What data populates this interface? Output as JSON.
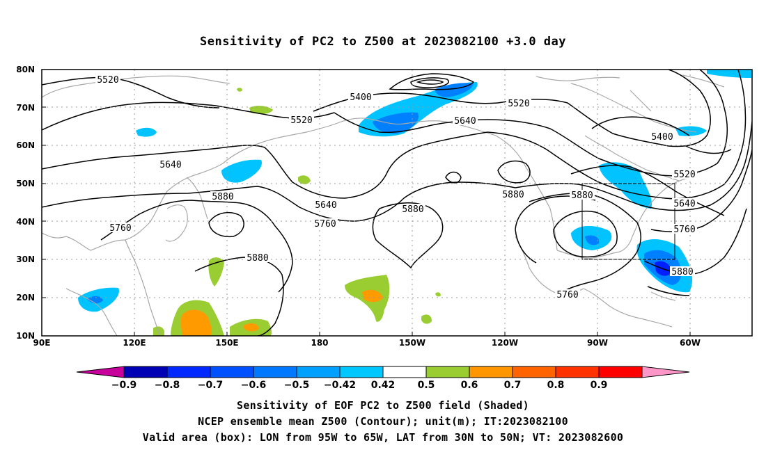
{
  "title": "Sensitivity of PC2 to Z500 at 2023082100 +3.0 day",
  "map": {
    "lat_labels": [
      "80N",
      "70N",
      "60N",
      "50N",
      "40N",
      "30N",
      "20N",
      "10N"
    ],
    "lon_labels": [
      "90E",
      "120E",
      "150E",
      "180",
      "150W",
      "120W",
      "90W",
      "60W"
    ],
    "contour_labels": [
      {
        "text": "5520"
      },
      {
        "text": "5400"
      },
      {
        "text": "5520"
      },
      {
        "text": "5640"
      },
      {
        "text": "5400"
      },
      {
        "text": "5520"
      },
      {
        "text": "5520"
      },
      {
        "text": "5640"
      },
      {
        "text": "5640"
      },
      {
        "text": "5760"
      },
      {
        "text": "5880"
      },
      {
        "text": "5880"
      },
      {
        "text": "5640"
      },
      {
        "text": "5760"
      },
      {
        "text": "5760"
      },
      {
        "text": "5880"
      },
      {
        "text": "5760"
      },
      {
        "text": "5880"
      },
      {
        "text": "5880"
      },
      {
        "text": "5880"
      }
    ],
    "valid_box": {
      "lon_from": "95W",
      "lon_to": "65W",
      "lat_from": "30N",
      "lat_to": "50N"
    },
    "colors": {
      "contour": "#000000",
      "coast": "#a8a8a8",
      "grid": "#9a9a9a",
      "light_blue": "#00c3ff",
      "mid_blue": "#008cff",
      "blue": "#0050ff",
      "deep_blue": "#1a1aff",
      "green": "#9acd32",
      "orange": "#ff9a00"
    }
  },
  "colorbar": {
    "labels": [
      "-0.9",
      "-0.8",
      "-0.7",
      "-0.6",
      "-0.5",
      "-0.42",
      "0.42",
      "0.5",
      "0.6",
      "0.7",
      "0.8",
      "0.9"
    ],
    "colors": [
      "#c8009b",
      "#0000b4",
      "#0028ff",
      "#0050ff",
      "#0078ff",
      "#00a0ff",
      "#00c8ff",
      "#ffffff",
      "#9acd32",
      "#ff9600",
      "#ff6400",
      "#ff3200",
      "#ff0000",
      "#ff96c8"
    ]
  },
  "captions": {
    "line1": "Sensitivity of EOF PC2 to Z500 field (Shaded)",
    "line2": "NCEP ensemble mean Z500 (Contour); unit(m); IT:2023082100",
    "line3": "Valid area (box): LON from 95W to 65W, LAT from 30N to 50N; VT: 2023082600"
  }
}
